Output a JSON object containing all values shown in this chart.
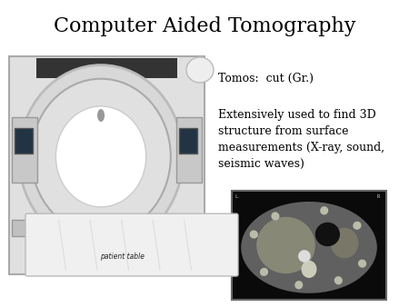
{
  "title": "Computer Aided Tomography",
  "title_fontsize": 16,
  "title_font": "serif",
  "background_color": "#ffffff",
  "text1": "Tomos:  cut (Gr.)",
  "text2": "Extensively used to find 3D\nstructure from surface\nmeasurements (X-ray, sound,\nseismic waves)",
  "text1_fontsize": 9,
  "text2_fontsize": 9,
  "patient_label": "patient table",
  "body_bg": "#e8e8e8",
  "scanner_edge": "#999999",
  "ring_face": "#f0f0f0",
  "hole_face": "#ffffff",
  "table_face": "#f5f5f5",
  "panel_face": "#c8c8c8",
  "top_bar": "#333333",
  "ct_bg": "#111111",
  "ct_body": "#777777",
  "ct_liver": "#999988",
  "ct_spleen": "#888877",
  "ct_spine": "#ddddcc",
  "ct_aorta": "#ffffff",
  "ct_stomach": "#222222",
  "ct_rib": "#cccccc"
}
